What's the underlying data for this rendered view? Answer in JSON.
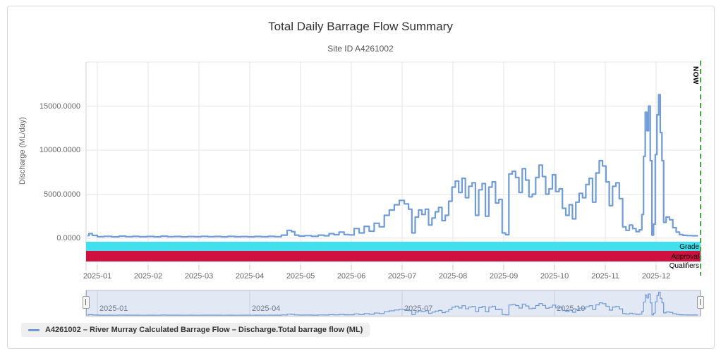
{
  "chart_data": {
    "type": "line",
    "title": "Total Daily Barrage Flow Summary",
    "subtitle": "Site ID A4261002",
    "xlabel": "",
    "ylabel": "Discharge (ML/day)",
    "ylim": [
      0,
      20000
    ],
    "grid": true,
    "legend_position": "bottom-left",
    "x_tick_labels": [
      "2025-01",
      "2025-02",
      "2025-03",
      "2025-04",
      "2025-05",
      "2025-06",
      "2025-07",
      "2025-08",
      "2025-09",
      "2025-10",
      "2025-11",
      "2025-12"
    ],
    "y_tick_labels": [
      "0.0000",
      "5000.0000",
      "10000.0000",
      "15000.0000"
    ],
    "y_tick_values": [
      0,
      5000,
      10000,
      15000
    ],
    "now_marker": {
      "label": "NOW",
      "position": "2025-12-27",
      "color": "#44a944"
    },
    "bands": [
      {
        "label": "Grade",
        "color": "#42e0ec"
      },
      {
        "label": "Approval",
        "color": "#d0103f"
      },
      {
        "label": "Qualifiers",
        "color": "#ffffff"
      }
    ],
    "navigator": {
      "tick_labels": [
        "2025-01",
        "2025-04",
        "2025-07",
        "2025-10"
      ],
      "mask_color": "rgba(102,133,194,0.18)"
    },
    "series": [
      {
        "name": "A4261002 – River Murray Calculated Barrage Flow – Discharge.Total barrage flow (ML)",
        "color": "#6f9bd8",
        "units": "ML/day",
        "points": [
          [
            "2024-12-26",
            300
          ],
          [
            "2024-12-28",
            520
          ],
          [
            "2024-12-30",
            320
          ],
          [
            "2025-01-03",
            180
          ],
          [
            "2025-01-07",
            220
          ],
          [
            "2025-01-12",
            160
          ],
          [
            "2025-01-16",
            240
          ],
          [
            "2025-01-20",
            180
          ],
          [
            "2025-01-24",
            210
          ],
          [
            "2025-01-28",
            170
          ],
          [
            "2025-02-02",
            200
          ],
          [
            "2025-02-06",
            160
          ],
          [
            "2025-02-10",
            230
          ],
          [
            "2025-02-14",
            180
          ],
          [
            "2025-02-18",
            200
          ],
          [
            "2025-02-22",
            160
          ],
          [
            "2025-02-26",
            190
          ],
          [
            "2025-03-02",
            170
          ],
          [
            "2025-03-06",
            220
          ],
          [
            "2025-03-10",
            180
          ],
          [
            "2025-03-14",
            200
          ],
          [
            "2025-03-18",
            160
          ],
          [
            "2025-03-22",
            210
          ],
          [
            "2025-03-26",
            170
          ],
          [
            "2025-03-30",
            190
          ],
          [
            "2025-04-03",
            160
          ],
          [
            "2025-04-07",
            200
          ],
          [
            "2025-04-11",
            170
          ],
          [
            "2025-04-15",
            210
          ],
          [
            "2025-04-19",
            180
          ],
          [
            "2025-04-23",
            350
          ],
          [
            "2025-04-26",
            900
          ],
          [
            "2025-04-28",
            750
          ],
          [
            "2025-04-30",
            350
          ],
          [
            "2025-05-03",
            250
          ],
          [
            "2025-05-07",
            300
          ],
          [
            "2025-05-11",
            220
          ],
          [
            "2025-05-15",
            350
          ],
          [
            "2025-05-18",
            280
          ],
          [
            "2025-05-21",
            520
          ],
          [
            "2025-05-24",
            400
          ],
          [
            "2025-05-27",
            700
          ],
          [
            "2025-05-30",
            420
          ],
          [
            "2025-06-02",
            380
          ],
          [
            "2025-06-05",
            1100
          ],
          [
            "2025-06-08",
            600
          ],
          [
            "2025-06-11",
            1350
          ],
          [
            "2025-06-14",
            800
          ],
          [
            "2025-06-17",
            1700
          ],
          [
            "2025-06-20",
            1300
          ],
          [
            "2025-06-23",
            2600
          ],
          [
            "2025-06-26",
            3200
          ],
          [
            "2025-06-29",
            3800
          ],
          [
            "2025-07-02",
            4300
          ],
          [
            "2025-07-05",
            3900
          ],
          [
            "2025-07-07",
            3300
          ],
          [
            "2025-07-09",
            600
          ],
          [
            "2025-07-11",
            2400
          ],
          [
            "2025-07-13",
            3200
          ],
          [
            "2025-07-15",
            2700
          ],
          [
            "2025-07-17",
            3300
          ],
          [
            "2025-07-19",
            1500
          ],
          [
            "2025-07-21",
            2300
          ],
          [
            "2025-07-23",
            3000
          ],
          [
            "2025-07-25",
            3500
          ],
          [
            "2025-07-27",
            2000
          ],
          [
            "2025-07-29",
            2600
          ],
          [
            "2025-07-31",
            4200
          ],
          [
            "2025-08-02",
            5800
          ],
          [
            "2025-08-04",
            6500
          ],
          [
            "2025-08-06",
            5200
          ],
          [
            "2025-08-08",
            6800
          ],
          [
            "2025-08-10",
            4600
          ],
          [
            "2025-08-12",
            5900
          ],
          [
            "2025-08-14",
            6300
          ],
          [
            "2025-08-16",
            2600
          ],
          [
            "2025-08-18",
            5500
          ],
          [
            "2025-08-20",
            6200
          ],
          [
            "2025-08-22",
            2500
          ],
          [
            "2025-08-24",
            5800
          ],
          [
            "2025-08-26",
            6400
          ],
          [
            "2025-08-28",
            4000
          ],
          [
            "2025-08-30",
            4400
          ],
          [
            "2025-09-01",
            600
          ],
          [
            "2025-09-03",
            400
          ],
          [
            "2025-09-05",
            7300
          ],
          [
            "2025-09-07",
            7600
          ],
          [
            "2025-09-09",
            6900
          ],
          [
            "2025-09-11",
            5200
          ],
          [
            "2025-09-13",
            7900
          ],
          [
            "2025-09-15",
            6600
          ],
          [
            "2025-09-17",
            4700
          ],
          [
            "2025-09-19",
            5000
          ],
          [
            "2025-09-21",
            6900
          ],
          [
            "2025-09-23",
            8300
          ],
          [
            "2025-09-25",
            7000
          ],
          [
            "2025-09-27",
            5000
          ],
          [
            "2025-09-29",
            5600
          ],
          [
            "2025-10-01",
            7200
          ],
          [
            "2025-10-03",
            5300
          ],
          [
            "2025-10-05",
            5600
          ],
          [
            "2025-10-07",
            3400
          ],
          [
            "2025-10-09",
            2600
          ],
          [
            "2025-10-11",
            3800
          ],
          [
            "2025-10-13",
            2200
          ],
          [
            "2025-10-15",
            4100
          ],
          [
            "2025-10-17",
            5100
          ],
          [
            "2025-10-19",
            4600
          ],
          [
            "2025-10-21",
            6100
          ],
          [
            "2025-10-23",
            6800
          ],
          [
            "2025-10-25",
            4100
          ],
          [
            "2025-10-27",
            7400
          ],
          [
            "2025-10-29",
            8800
          ],
          [
            "2025-10-31",
            8200
          ],
          [
            "2025-11-02",
            6400
          ],
          [
            "2025-11-04",
            3700
          ],
          [
            "2025-11-06",
            5900
          ],
          [
            "2025-11-08",
            6300
          ],
          [
            "2025-11-10",
            4500
          ],
          [
            "2025-11-12",
            1300
          ],
          [
            "2025-11-14",
            900
          ],
          [
            "2025-11-16",
            1500
          ],
          [
            "2025-11-18",
            1100
          ],
          [
            "2025-11-20",
            750
          ],
          [
            "2025-11-22",
            950
          ],
          [
            "2025-11-23",
            2700
          ],
          [
            "2025-11-24",
            9300
          ],
          [
            "2025-11-25",
            14300
          ],
          [
            "2025-11-26",
            12200
          ],
          [
            "2025-11-27",
            15000
          ],
          [
            "2025-11-28",
            8800
          ],
          [
            "2025-11-29",
            350
          ],
          [
            "2025-11-30",
            1600
          ],
          [
            "2025-12-01",
            9500
          ],
          [
            "2025-12-02",
            14000
          ],
          [
            "2025-12-03",
            16300
          ],
          [
            "2025-12-04",
            12000
          ],
          [
            "2025-12-05",
            8800
          ],
          [
            "2025-12-06",
            1800
          ],
          [
            "2025-12-08",
            2400
          ],
          [
            "2025-12-10",
            2100
          ],
          [
            "2025-12-12",
            1200
          ],
          [
            "2025-12-14",
            700
          ],
          [
            "2025-12-16",
            420
          ],
          [
            "2025-12-18",
            330
          ],
          [
            "2025-12-21",
            300
          ],
          [
            "2025-12-24",
            280
          ],
          [
            "2025-12-26",
            280
          ]
        ]
      }
    ]
  },
  "legend": {
    "label": "A4261002 – River Murray Calculated Barrage Flow – Discharge.Total barrage flow (ML)"
  },
  "colors": {
    "series": "#6f9bd8",
    "grid": "#e6e6e6",
    "axis_text": "#666666",
    "grade_band": "#42e0ec",
    "approval_band": "#d0103f",
    "now_line": "#44a944"
  }
}
